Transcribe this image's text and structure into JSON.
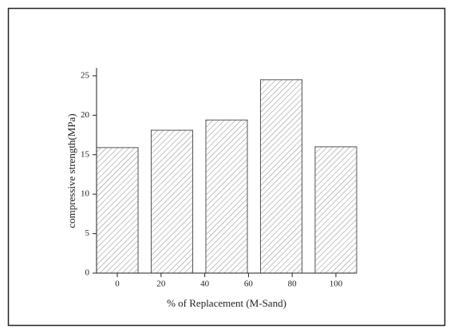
{
  "chart_data": {
    "type": "bar",
    "x": [
      0,
      25,
      50,
      75,
      100
    ],
    "values": [
      15.9,
      18.1,
      19.4,
      24.5,
      16.0
    ],
    "color": "#555555",
    "xlim": [
      -9.5,
      109.5
    ],
    "xticks": [
      0,
      20,
      40,
      60,
      80,
      100
    ],
    "ylim": [
      0,
      26
    ],
    "yticks": [
      0,
      5,
      10,
      15,
      20,
      25
    ],
    "x_label": "% of Replacement (M-Sand)",
    "y_label": "compressive strength(MPa)",
    "grid": false
  }
}
